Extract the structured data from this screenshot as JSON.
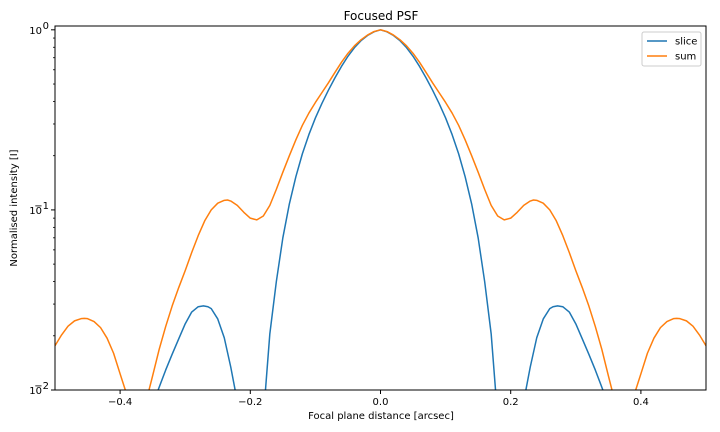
{
  "chart_data": {
    "type": "line",
    "title": "Focused PSF",
    "xlabel": "Focal plane distance [arcsec]",
    "ylabel": "Normalised intensity [I]",
    "xlim": [
      -0.5,
      0.5
    ],
    "ylim": [
      0.01,
      1.05
    ],
    "yscale": "log",
    "xticks": [
      -0.4,
      -0.2,
      0.0,
      0.2,
      0.4
    ],
    "xtick_labels": [
      "−0.4",
      "−0.2",
      "0.0",
      "0.2",
      "0.4"
    ],
    "yticks": [
      0.01,
      0.1,
      1
    ],
    "grid": false,
    "legend_position": "top-right",
    "series": [
      {
        "name": "slice",
        "color": "#1f77b4",
        "segments": [
          {
            "x": [
              -0.3416,
              -0.33,
              -0.32,
              -0.31,
              -0.3,
              -0.29,
              -0.28,
              -0.272,
              -0.265,
              -0.26,
              -0.25,
              -0.24,
              -0.23,
              -0.2233
            ],
            "y": [
              0.01,
              0.0129,
              0.0158,
              0.0192,
              0.0233,
              0.0271,
              0.029,
              0.0293,
              0.029,
              0.0283,
              0.0248,
              0.0195,
              0.0134,
              0.01
            ]
          },
          {
            "x": [
              -0.1767,
              -0.17,
              -0.16,
              -0.15,
              -0.14,
              -0.13,
              -0.12,
              -0.11,
              -0.1,
              -0.09,
              -0.08,
              -0.07,
              -0.06,
              -0.05,
              -0.04,
              -0.03,
              -0.02,
              -0.01,
              0.0,
              0.01,
              0.02,
              0.03,
              0.04,
              0.05,
              0.06,
              0.07,
              0.08,
              0.09,
              0.1,
              0.11,
              0.12,
              0.13,
              0.14,
              0.15,
              0.16,
              0.17,
              0.1767
            ],
            "y": [
              0.01,
              0.0205,
              0.04,
              0.07,
              0.108,
              0.153,
              0.205,
              0.262,
              0.324,
              0.39,
              0.462,
              0.541,
              0.626,
              0.713,
              0.796,
              0.87,
              0.93,
              0.975,
              1.0,
              0.975,
              0.93,
              0.87,
              0.796,
              0.713,
              0.626,
              0.541,
              0.462,
              0.39,
              0.324,
              0.262,
              0.205,
              0.153,
              0.108,
              0.07,
              0.04,
              0.0205,
              0.01
            ]
          },
          {
            "x": [
              0.2233,
              0.23,
              0.24,
              0.25,
              0.26,
              0.265,
              0.272,
              0.28,
              0.29,
              0.3,
              0.31,
              0.32,
              0.33,
              0.3416
            ],
            "y": [
              0.01,
              0.0134,
              0.0195,
              0.0248,
              0.0283,
              0.029,
              0.0293,
              0.029,
              0.0271,
              0.0233,
              0.0192,
              0.0158,
              0.0129,
              0.01
            ]
          }
        ]
      },
      {
        "name": "sum",
        "color": "#ff7f0e",
        "segments": [
          {
            "x": [
              -0.5,
              -0.49,
              -0.48,
              -0.47,
              -0.46,
              -0.455,
              -0.45,
              -0.44,
              -0.43,
              -0.42,
              -0.41,
              -0.4,
              -0.392
            ],
            "y": [
              0.0176,
              0.0202,
              0.0226,
              0.0242,
              0.0249,
              0.025,
              0.0249,
              0.024,
              0.0222,
              0.0194,
              0.016,
              0.0123,
              0.01
            ]
          },
          {
            "x": [
              -0.3556,
              -0.35,
              -0.34,
              -0.33,
              -0.32,
              -0.31,
              -0.3,
              -0.29,
              -0.28,
              -0.27,
              -0.26,
              -0.25,
              -0.24,
              -0.235,
              -0.23,
              -0.22,
              -0.21,
              -0.2,
              -0.19,
              -0.18,
              -0.17,
              -0.16,
              -0.15,
              -0.14,
              -0.13,
              -0.12,
              -0.11,
              -0.1,
              -0.09,
              -0.08,
              -0.07,
              -0.06,
              -0.05,
              -0.04,
              -0.03,
              -0.02,
              -0.01,
              0.0,
              0.01,
              0.02,
              0.03,
              0.04,
              0.05,
              0.06,
              0.07,
              0.08,
              0.09,
              0.1,
              0.11,
              0.12,
              0.13,
              0.14,
              0.15,
              0.16,
              0.17,
              0.18,
              0.19,
              0.2,
              0.21,
              0.22,
              0.23,
              0.235,
              0.24,
              0.25,
              0.26,
              0.27,
              0.28,
              0.29,
              0.3,
              0.31,
              0.32,
              0.33,
              0.34,
              0.35,
              0.3556
            ],
            "y": [
              0.01,
              0.012,
              0.0168,
              0.0225,
              0.0293,
              0.037,
              0.046,
              0.058,
              0.072,
              0.087,
              0.1,
              0.109,
              0.113,
              0.1135,
              0.112,
              0.106,
              0.097,
              0.09,
              0.088,
              0.0925,
              0.106,
              0.13,
              0.162,
              0.2,
              0.245,
              0.295,
              0.345,
              0.395,
              0.448,
              0.508,
              0.58,
              0.66,
              0.74,
              0.815,
              0.88,
              0.935,
              0.978,
              1.0,
              0.978,
              0.935,
              0.88,
              0.815,
              0.74,
              0.66,
              0.58,
              0.508,
              0.448,
              0.395,
              0.345,
              0.295,
              0.245,
              0.2,
              0.162,
              0.13,
              0.106,
              0.0925,
              0.088,
              0.09,
              0.097,
              0.106,
              0.112,
              0.1135,
              0.113,
              0.109,
              0.1,
              0.087,
              0.072,
              0.058,
              0.046,
              0.037,
              0.0293,
              0.0225,
              0.0168,
              0.012,
              0.01
            ]
          },
          {
            "x": [
              0.392,
              0.4,
              0.41,
              0.42,
              0.43,
              0.44,
              0.45,
              0.455,
              0.46,
              0.47,
              0.48,
              0.49,
              0.5
            ],
            "y": [
              0.01,
              0.0123,
              0.016,
              0.0194,
              0.0222,
              0.024,
              0.0249,
              0.025,
              0.0249,
              0.0242,
              0.0226,
              0.0202,
              0.0176
            ]
          }
        ]
      }
    ]
  }
}
